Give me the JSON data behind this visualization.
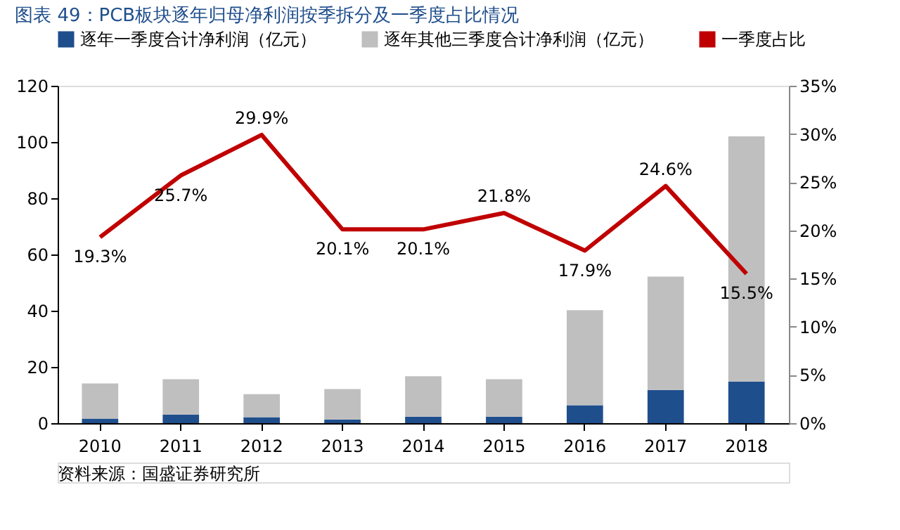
{
  "chart_data": {
    "type": "bar",
    "title": "图表 49：PCB板块逐年归母净利润按季拆分及一季度占比情况",
    "categories": [
      "2010",
      "2011",
      "2012",
      "2013",
      "2014",
      "2015",
      "2016",
      "2017",
      "2018"
    ],
    "stacked": true,
    "series": [
      {
        "name": "逐年一季度合计净利润（亿元）",
        "color": "#1f4e8c",
        "values": [
          1.6,
          3.0,
          2.1,
          1.3,
          2.3,
          2.3,
          6.4,
          11.8,
          14.8
        ]
      },
      {
        "name": "逐年其他三季度合计净利润（亿元）",
        "color": "#bfbfbf",
        "values": [
          12.5,
          12.6,
          8.2,
          10.8,
          14.4,
          13.3,
          33.8,
          40.3,
          87.2
        ]
      },
      {
        "name": "一季度占比",
        "type": "line",
        "axis": "y2",
        "color": "#c00000",
        "values": [
          19.3,
          25.7,
          29.9,
          20.1,
          20.1,
          21.8,
          17.9,
          24.6,
          15.5
        ],
        "value_labels": [
          "19.3%",
          "25.7%",
          "29.9%",
          "20.1%",
          "20.1%",
          "21.8%",
          "17.9%",
          "24.6%",
          "15.5%"
        ]
      }
    ],
    "ylim": [
      0,
      120
    ],
    "yticks": [
      0,
      20,
      40,
      60,
      80,
      100,
      120
    ],
    "y2lim": [
      0,
      35
    ],
    "y2ticks": [
      {
        "value": 0,
        "label": "0%"
      },
      {
        "value": 5,
        "label": "5%"
      },
      {
        "value": 10,
        "label": "10%"
      },
      {
        "value": 15,
        "label": "15%"
      },
      {
        "value": 20,
        "label": "20%"
      },
      {
        "value": 25,
        "label": "25%"
      },
      {
        "value": 30,
        "label": "30%"
      },
      {
        "value": 35,
        "label": "35%"
      }
    ],
    "legend": "top",
    "grid": false,
    "annotations": [
      "资料来源：国盛证券研究所"
    ]
  }
}
